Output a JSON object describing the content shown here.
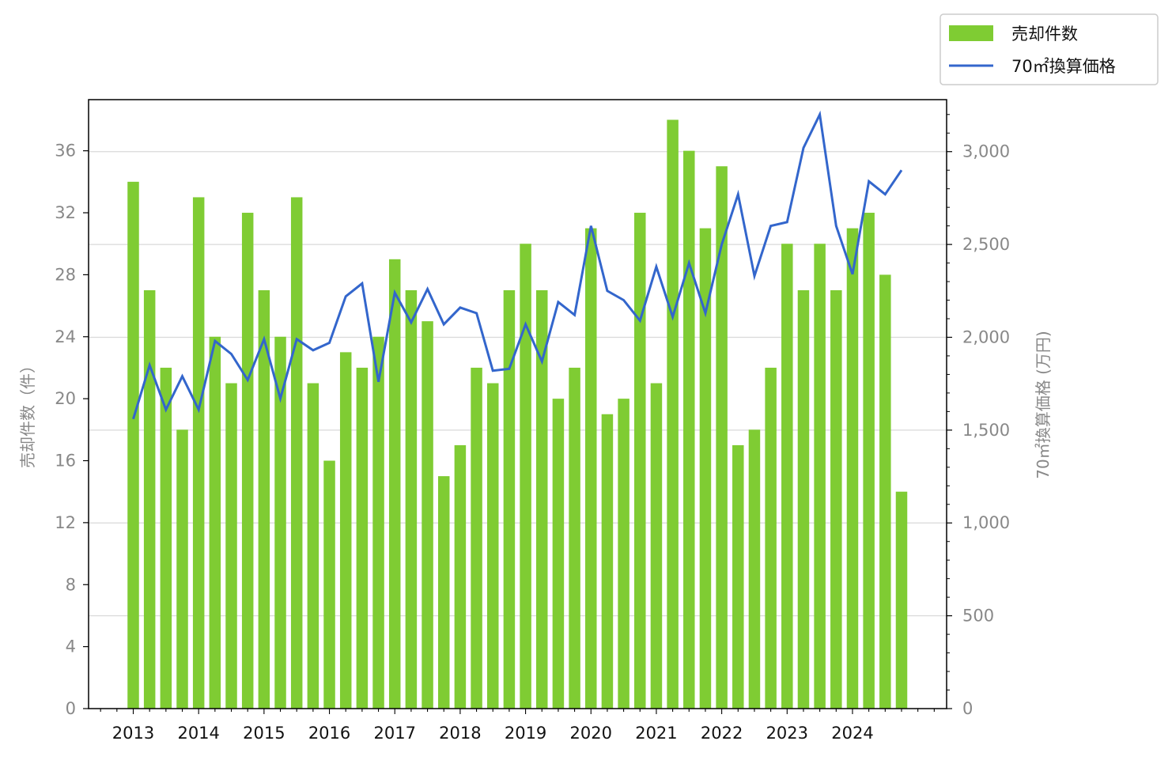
{
  "chart_data": {
    "type": "bar",
    "x_tick_labels": [
      "2013",
      "2014",
      "2015",
      "2016",
      "2017",
      "2018",
      "2019",
      "2020",
      "2021",
      "2022",
      "2023",
      "2024"
    ],
    "series": [
      {
        "name": "売却件数",
        "type": "bar",
        "axis": "left",
        "color": "#7fcc33",
        "values": [
          34,
          27,
          22,
          18,
          33,
          24,
          21,
          32,
          27,
          24,
          33,
          21,
          16,
          23,
          22,
          24,
          29,
          27,
          25,
          15,
          17,
          22,
          21,
          27,
          30,
          27,
          20,
          22,
          31,
          19,
          20,
          32,
          21,
          38,
          36,
          31,
          35,
          17,
          18,
          22,
          30,
          27,
          30,
          27,
          31,
          32,
          28,
          14
        ]
      },
      {
        "name": "70㎡換算価格",
        "type": "line",
        "axis": "right",
        "color": "#3366cc",
        "values": [
          1560,
          1850,
          1610,
          1790,
          1610,
          1980,
          1910,
          1770,
          1990,
          1670,
          1990,
          1930,
          1970,
          2220,
          2290,
          1760,
          2240,
          2080,
          2260,
          2070,
          2160,
          2130,
          1820,
          1830,
          2070,
          1870,
          2190,
          2120,
          2600,
          2250,
          2200,
          2090,
          2380,
          2110,
          2400,
          2130,
          2500,
          2770,
          2330,
          2600,
          2620,
          3020,
          3200,
          2600,
          2340,
          2840,
          2770,
          2900
        ]
      }
    ],
    "ylabel_left": "売却件数（件）",
    "ylabel_right": "70㎡換算価格 (万円)",
    "ylim_left": [
      0,
      39.3
    ],
    "yticks_left": [
      "0",
      "4",
      "8",
      "12",
      "16",
      "20",
      "24",
      "28",
      "32",
      "36"
    ],
    "ylim_right": [
      0,
      3280
    ],
    "yticks_right": [
      "0",
      "500",
      "1,000",
      "1,500",
      "2,000",
      "2,500",
      "3,000"
    ],
    "legend": [
      "売却件数",
      "70㎡換算価格"
    ],
    "legend_position": "top-right, outside plot",
    "grid": "horizontal (right axis)"
  }
}
